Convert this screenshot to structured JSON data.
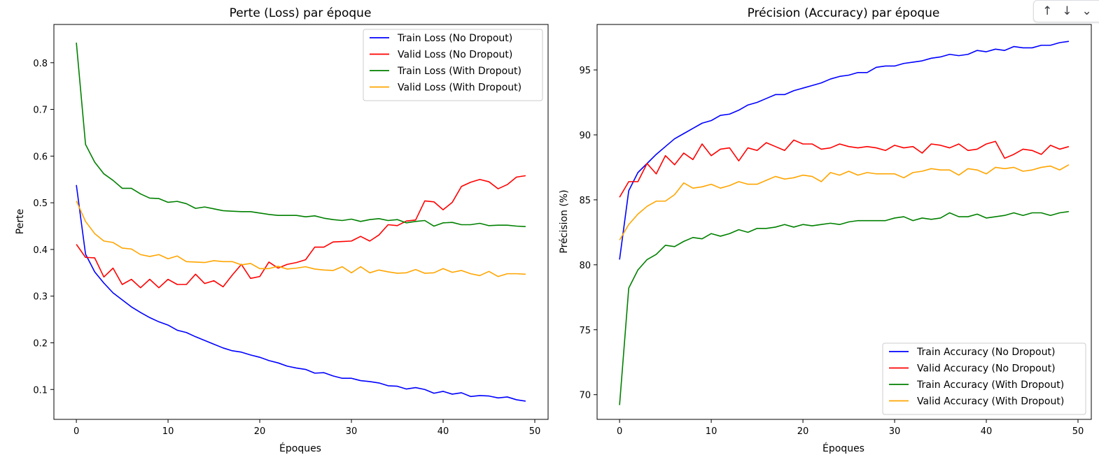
{
  "toolbar": {
    "up_icon": "↑",
    "down_icon": "↓",
    "more_icon": "⌄"
  },
  "charts": [
    {
      "title": "Perte (Loss) par époque",
      "xlabel": "Époques",
      "ylabel": "Perte"
    },
    {
      "title": "Précision (Accuracy) par époque",
      "xlabel": "Époques",
      "ylabel": "Précision (%)"
    }
  ],
  "chart_data": [
    {
      "type": "line",
      "title": "Perte (Loss) par époque",
      "xlabel": "Époques",
      "ylabel": "Perte",
      "xlim": [
        -2.45,
        51.45
      ],
      "ylim": [
        0.036,
        0.882
      ],
      "xticks": [
        0,
        10,
        20,
        30,
        40,
        50
      ],
      "yticks": [
        0.1,
        0.2,
        0.3,
        0.4,
        0.5,
        0.6,
        0.7,
        0.8
      ],
      "x": [
        0,
        1,
        2,
        3,
        4,
        5,
        6,
        7,
        8,
        9,
        10,
        11,
        12,
        13,
        14,
        15,
        16,
        17,
        18,
        19,
        20,
        21,
        22,
        23,
        24,
        25,
        26,
        27,
        28,
        29,
        30,
        31,
        32,
        33,
        34,
        35,
        36,
        37,
        38,
        39,
        40,
        41,
        42,
        43,
        44,
        45,
        46,
        47,
        48,
        49
      ],
      "legend_position": "top-right",
      "grid": false,
      "series": [
        {
          "name": "Train Loss (No Dropout)",
          "color": "#0000ff",
          "values": [
            0.538,
            0.39,
            0.352,
            0.328,
            0.307,
            0.292,
            0.277,
            0.265,
            0.254,
            0.245,
            0.238,
            0.227,
            0.222,
            0.213,
            0.205,
            0.197,
            0.189,
            0.183,
            0.18,
            0.174,
            0.169,
            0.162,
            0.157,
            0.15,
            0.146,
            0.143,
            0.135,
            0.136,
            0.129,
            0.124,
            0.124,
            0.119,
            0.117,
            0.114,
            0.108,
            0.107,
            0.101,
            0.104,
            0.1,
            0.092,
            0.096,
            0.09,
            0.093,
            0.085,
            0.087,
            0.086,
            0.082,
            0.084,
            0.078,
            0.075
          ]
        },
        {
          "name": "Valid Loss (No Dropout)",
          "color": "#ff0000",
          "values": [
            0.411,
            0.383,
            0.382,
            0.341,
            0.36,
            0.325,
            0.336,
            0.318,
            0.336,
            0.318,
            0.336,
            0.325,
            0.325,
            0.347,
            0.327,
            0.333,
            0.32,
            0.345,
            0.368,
            0.338,
            0.342,
            0.373,
            0.36,
            0.368,
            0.372,
            0.378,
            0.405,
            0.405,
            0.416,
            0.417,
            0.418,
            0.428,
            0.418,
            0.431,
            0.453,
            0.451,
            0.461,
            0.463,
            0.504,
            0.502,
            0.485,
            0.501,
            0.535,
            0.544,
            0.55,
            0.545,
            0.53,
            0.539,
            0.555,
            0.558
          ]
        },
        {
          "name": "Train Loss (With Dropout)",
          "color": "#008000",
          "values": [
            0.843,
            0.625,
            0.587,
            0.562,
            0.548,
            0.531,
            0.531,
            0.519,
            0.51,
            0.509,
            0.501,
            0.503,
            0.498,
            0.488,
            0.491,
            0.487,
            0.483,
            0.482,
            0.481,
            0.481,
            0.478,
            0.475,
            0.473,
            0.473,
            0.473,
            0.47,
            0.472,
            0.467,
            0.464,
            0.462,
            0.465,
            0.46,
            0.464,
            0.466,
            0.462,
            0.464,
            0.457,
            0.46,
            0.462,
            0.45,
            0.457,
            0.458,
            0.453,
            0.453,
            0.456,
            0.451,
            0.452,
            0.452,
            0.45,
            0.449
          ]
        },
        {
          "name": "Valid Loss (With Dropout)",
          "color": "#ffa500",
          "values": [
            0.504,
            0.46,
            0.434,
            0.418,
            0.415,
            0.403,
            0.401,
            0.389,
            0.385,
            0.389,
            0.38,
            0.386,
            0.374,
            0.373,
            0.372,
            0.376,
            0.374,
            0.374,
            0.367,
            0.37,
            0.359,
            0.359,
            0.364,
            0.358,
            0.36,
            0.363,
            0.358,
            0.356,
            0.355,
            0.363,
            0.35,
            0.363,
            0.35,
            0.356,
            0.352,
            0.349,
            0.35,
            0.357,
            0.349,
            0.35,
            0.359,
            0.351,
            0.355,
            0.348,
            0.344,
            0.353,
            0.342,
            0.348,
            0.348,
            0.347
          ]
        }
      ]
    },
    {
      "type": "line",
      "title": "Précision (Accuracy) par époque",
      "xlabel": "Époques",
      "ylabel": "Précision (%)",
      "xlim": [
        -2.45,
        51.45
      ],
      "ylim": [
        68.1,
        98.5
      ],
      "xticks": [
        0,
        10,
        20,
        30,
        40,
        50
      ],
      "yticks": [
        70,
        75,
        80,
        85,
        90,
        95
      ],
      "x": [
        0,
        1,
        2,
        3,
        4,
        5,
        6,
        7,
        8,
        9,
        10,
        11,
        12,
        13,
        14,
        15,
        16,
        17,
        18,
        19,
        20,
        21,
        22,
        23,
        24,
        25,
        26,
        27,
        28,
        29,
        30,
        31,
        32,
        33,
        34,
        35,
        36,
        37,
        38,
        39,
        40,
        41,
        42,
        43,
        44,
        45,
        46,
        47,
        48,
        49
      ],
      "legend_position": "lower-right",
      "grid": false,
      "series": [
        {
          "name": "Train Accuracy (No Dropout)",
          "color": "#0000ff",
          "values": [
            80.4,
            85.7,
            87.1,
            87.8,
            88.5,
            89.1,
            89.7,
            90.1,
            90.5,
            90.9,
            91.1,
            91.5,
            91.6,
            91.9,
            92.3,
            92.5,
            92.8,
            93.1,
            93.1,
            93.4,
            93.6,
            93.8,
            94.0,
            94.3,
            94.5,
            94.6,
            94.8,
            94.8,
            95.2,
            95.3,
            95.3,
            95.5,
            95.6,
            95.7,
            95.9,
            96.0,
            96.2,
            96.1,
            96.2,
            96.5,
            96.4,
            96.6,
            96.5,
            96.8,
            96.7,
            96.7,
            96.9,
            96.9,
            97.1,
            97.2
          ]
        },
        {
          "name": "Valid Accuracy (No Dropout)",
          "color": "#ff0000",
          "values": [
            85.2,
            86.4,
            86.4,
            87.8,
            87.0,
            88.4,
            87.7,
            88.6,
            88.1,
            89.3,
            88.4,
            88.9,
            89.0,
            88.0,
            89.0,
            88.8,
            89.4,
            89.1,
            88.8,
            89.6,
            89.3,
            89.3,
            88.9,
            89.0,
            89.3,
            89.1,
            89.0,
            89.1,
            89.0,
            88.8,
            89.2,
            89.0,
            89.1,
            88.6,
            89.3,
            89.2,
            89.0,
            89.3,
            88.8,
            88.9,
            89.3,
            89.5,
            88.2,
            88.5,
            88.9,
            88.8,
            88.5,
            89.2,
            88.9,
            89.1
          ]
        },
        {
          "name": "Train Accuracy (With Dropout)",
          "color": "#008000",
          "values": [
            69.2,
            78.2,
            79.6,
            80.4,
            80.8,
            81.5,
            81.4,
            81.8,
            82.1,
            82.0,
            82.4,
            82.2,
            82.4,
            82.7,
            82.5,
            82.8,
            82.8,
            82.9,
            83.1,
            82.9,
            83.1,
            83.0,
            83.1,
            83.2,
            83.1,
            83.3,
            83.4,
            83.4,
            83.4,
            83.4,
            83.6,
            83.7,
            83.4,
            83.6,
            83.5,
            83.6,
            84.0,
            83.7,
            83.7,
            83.9,
            83.6,
            83.7,
            83.8,
            84.0,
            83.8,
            84.0,
            84.0,
            83.8,
            84.0,
            84.1
          ]
        },
        {
          "name": "Valid Accuracy (With Dropout)",
          "color": "#ffa500",
          "values": [
            81.9,
            83.1,
            83.9,
            84.5,
            84.9,
            84.9,
            85.4,
            86.3,
            85.9,
            86.0,
            86.2,
            85.9,
            86.1,
            86.4,
            86.2,
            86.2,
            86.5,
            86.8,
            86.6,
            86.7,
            86.9,
            86.8,
            86.4,
            87.1,
            86.9,
            87.2,
            86.9,
            87.1,
            87.0,
            87.0,
            87.0,
            86.7,
            87.1,
            87.2,
            87.4,
            87.3,
            87.3,
            86.9,
            87.4,
            87.3,
            87.0,
            87.5,
            87.4,
            87.5,
            87.2,
            87.3,
            87.5,
            87.6,
            87.3,
            87.7
          ]
        }
      ]
    }
  ]
}
